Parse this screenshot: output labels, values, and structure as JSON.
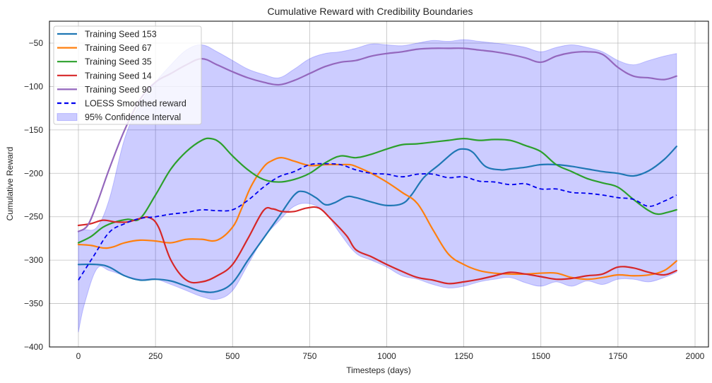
{
  "chart_data": {
    "type": "line",
    "title": "Cumulative Reward with Credibility Boundaries",
    "xlabel": "Timesteps (days)",
    "ylabel": "Cumulative Reward",
    "xlim": [
      -85,
      2030
    ],
    "ylim": [
      -400,
      -27
    ],
    "xticks": [
      0,
      250,
      500,
      750,
      1000,
      1250,
      1500,
      1750,
      2000
    ],
    "xtick_labels": [
      "0",
      "250",
      "500",
      "750",
      "1000",
      "1250",
      "1500",
      "1750",
      "2000"
    ],
    "yticks": [
      -400,
      -350,
      -300,
      -250,
      -200,
      -150,
      -100,
      -50
    ],
    "ytick_labels": [
      "−400",
      "−350",
      "−300",
      "−250",
      "−200",
      "−150",
      "−100",
      "−50"
    ],
    "grid": true,
    "legend_position": "top-left",
    "series": [
      {
        "name": "Training Seed 153",
        "color": "#1f77b4",
        "style": "solid",
        "x": [
          0,
          60,
          100,
          150,
          200,
          250,
          300,
          350,
          400,
          450,
          500,
          550,
          600,
          650,
          700,
          730,
          770,
          800,
          830,
          870,
          900,
          950,
          1000,
          1050,
          1080,
          1120,
          1170,
          1220,
          1250,
          1280,
          1320,
          1370,
          1400,
          1450,
          1500,
          1550,
          1600,
          1650,
          1700,
          1750,
          1800,
          1850,
          1900,
          1940
        ],
        "y": [
          -305,
          -305,
          -308,
          -318,
          -323,
          -322,
          -324,
          -330,
          -336,
          -336,
          -326,
          -300,
          -275,
          -250,
          -225,
          -221,
          -228,
          -236,
          -234,
          -227,
          -228,
          -233,
          -237,
          -235,
          -225,
          -205,
          -190,
          -175,
          -172,
          -176,
          -192,
          -196,
          -195,
          -193,
          -190,
          -190,
          -192,
          -195,
          -198,
          -200,
          -203,
          -197,
          -184,
          -169
        ]
      },
      {
        "name": "Training Seed 67",
        "color": "#ff7f0e",
        "style": "solid",
        "x": [
          0,
          40,
          80,
          110,
          150,
          200,
          250,
          300,
          350,
          400,
          450,
          500,
          530,
          560,
          600,
          630,
          660,
          700,
          750,
          800,
          850,
          880,
          900,
          950,
          1000,
          1050,
          1100,
          1150,
          1200,
          1250,
          1300,
          1350,
          1400,
          1450,
          1500,
          1550,
          1600,
          1650,
          1700,
          1750,
          1800,
          1850,
          1900,
          1940
        ],
        "y": [
          -282,
          -283,
          -286,
          -285,
          -280,
          -277,
          -278,
          -280,
          -276,
          -276,
          -277,
          -262,
          -240,
          -215,
          -193,
          -185,
          -182,
          -186,
          -191,
          -190,
          -190,
          -190,
          -192,
          -200,
          -210,
          -222,
          -235,
          -265,
          -293,
          -305,
          -312,
          -315,
          -316,
          -316,
          -315,
          -315,
          -320,
          -322,
          -320,
          -317,
          -318,
          -317,
          -312,
          -301
        ]
      },
      {
        "name": "Training Seed 35",
        "color": "#2ca02c",
        "style": "solid",
        "x": [
          0,
          40,
          80,
          120,
          160,
          200,
          250,
          300,
          350,
          400,
          430,
          460,
          500,
          550,
          600,
          650,
          700,
          750,
          800,
          850,
          900,
          950,
          1000,
          1050,
          1100,
          1150,
          1200,
          1250,
          1300,
          1350,
          1400,
          1450,
          1500,
          1550,
          1600,
          1650,
          1700,
          1750,
          1800,
          1850,
          1880,
          1910,
          1940
        ],
        "y": [
          -280,
          -273,
          -262,
          -256,
          -253,
          -252,
          -225,
          -195,
          -175,
          -162,
          -160,
          -165,
          -180,
          -196,
          -207,
          -210,
          -207,
          -200,
          -188,
          -180,
          -182,
          -178,
          -172,
          -167,
          -166,
          -164,
          -162,
          -160,
          -162,
          -161,
          -162,
          -168,
          -175,
          -190,
          -198,
          -206,
          -211,
          -216,
          -230,
          -243,
          -247,
          -245,
          -242
        ]
      },
      {
        "name": "Training Seed 14",
        "color": "#d62728",
        "style": "solid",
        "x": [
          0,
          40,
          80,
          120,
          160,
          200,
          230,
          260,
          300,
          350,
          400,
          450,
          500,
          550,
          600,
          630,
          660,
          700,
          740,
          780,
          820,
          870,
          900,
          950,
          1000,
          1050,
          1100,
          1150,
          1200,
          1250,
          1300,
          1350,
          1400,
          1450,
          1500,
          1550,
          1600,
          1650,
          1700,
          1750,
          1800,
          1850,
          1900,
          1940
        ],
        "y": [
          -260,
          -258,
          -254,
          -256,
          -256,
          -252,
          -251,
          -262,
          -300,
          -323,
          -325,
          -318,
          -305,
          -275,
          -243,
          -241,
          -244,
          -244,
          -240,
          -240,
          -253,
          -272,
          -288,
          -296,
          -305,
          -313,
          -320,
          -323,
          -327,
          -325,
          -322,
          -318,
          -314,
          -316,
          -319,
          -322,
          -321,
          -318,
          -316,
          -308,
          -309,
          -314,
          -317,
          -312
        ]
      },
      {
        "name": "Training Seed 90",
        "color": "#9467bd",
        "style": "solid",
        "x": [
          0,
          30,
          60,
          100,
          150,
          200,
          250,
          300,
          350,
          400,
          450,
          500,
          550,
          600,
          650,
          700,
          750,
          800,
          850,
          900,
          950,
          1000,
          1050,
          1100,
          1150,
          1200,
          1250,
          1300,
          1350,
          1400,
          1450,
          1500,
          1550,
          1600,
          1650,
          1700,
          1750,
          1800,
          1850,
          1900,
          1940
        ],
        "y": [
          -267,
          -260,
          -235,
          -195,
          -150,
          -115,
          -95,
          -85,
          -75,
          -68,
          -75,
          -83,
          -90,
          -95,
          -98,
          -93,
          -85,
          -77,
          -72,
          -70,
          -65,
          -62,
          -60,
          -57,
          -56,
          -56,
          -56,
          -58,
          -60,
          -63,
          -67,
          -72,
          -65,
          -61,
          -60,
          -63,
          -78,
          -88,
          -90,
          -92,
          -88
        ]
      },
      {
        "name": "LOESS Smoothed reward",
        "color": "#0000ee",
        "style": "dashed",
        "x": [
          0,
          50,
          100,
          150,
          200,
          250,
          300,
          350,
          400,
          450,
          500,
          550,
          600,
          650,
          700,
          750,
          800,
          850,
          900,
          950,
          1000,
          1050,
          1100,
          1150,
          1200,
          1250,
          1300,
          1350,
          1400,
          1450,
          1500,
          1550,
          1600,
          1650,
          1700,
          1750,
          1800,
          1850,
          1900,
          1940
        ],
        "y": [
          -323,
          -295,
          -268,
          -258,
          -252,
          -250,
          -247,
          -245,
          -242,
          -243,
          -242,
          -231,
          -216,
          -204,
          -198,
          -190,
          -189,
          -190,
          -196,
          -200,
          -201,
          -204,
          -201,
          -201,
          -205,
          -204,
          -209,
          -210,
          -213,
          -212,
          -218,
          -218,
          -222,
          -223,
          -225,
          -228,
          -230,
          -238,
          -232,
          -225
        ]
      }
    ],
    "confidence_interval": {
      "name": "95% Confidence Interval",
      "color": "#0000ff",
      "alpha": 0.2,
      "x": [
        0,
        20,
        60,
        100,
        150,
        200,
        250,
        300,
        350,
        400,
        450,
        500,
        550,
        600,
        650,
        700,
        750,
        800,
        850,
        900,
        950,
        1000,
        1050,
        1100,
        1150,
        1200,
        1250,
        1300,
        1350,
        1400,
        1450,
        1500,
        1550,
        1600,
        1650,
        1700,
        1750,
        1800,
        1850,
        1900,
        1940
      ],
      "upper": [
        -267,
        -265,
        -262,
        -230,
        -160,
        -120,
        -95,
        -75,
        -58,
        -52,
        -60,
        -70,
        -80,
        -86,
        -90,
        -80,
        -68,
        -62,
        -60,
        -56,
        -51,
        -52,
        -53,
        -50,
        -47,
        -48,
        -46,
        -48,
        -50,
        -52,
        -55,
        -60,
        -55,
        -52,
        -55,
        -60,
        -70,
        -75,
        -70,
        -65,
        -62
      ],
      "lower": [
        -383,
        -350,
        -310,
        -312,
        -318,
        -322,
        -322,
        -328,
        -335,
        -342,
        -345,
        -335,
        -305,
        -275,
        -255,
        -238,
        -235,
        -245,
        -270,
        -292,
        -300,
        -308,
        -318,
        -322,
        -328,
        -332,
        -330,
        -325,
        -322,
        -320,
        -326,
        -330,
        -325,
        -330,
        -324,
        -328,
        -322,
        -322,
        -325,
        -320,
        -314
      ]
    }
  }
}
